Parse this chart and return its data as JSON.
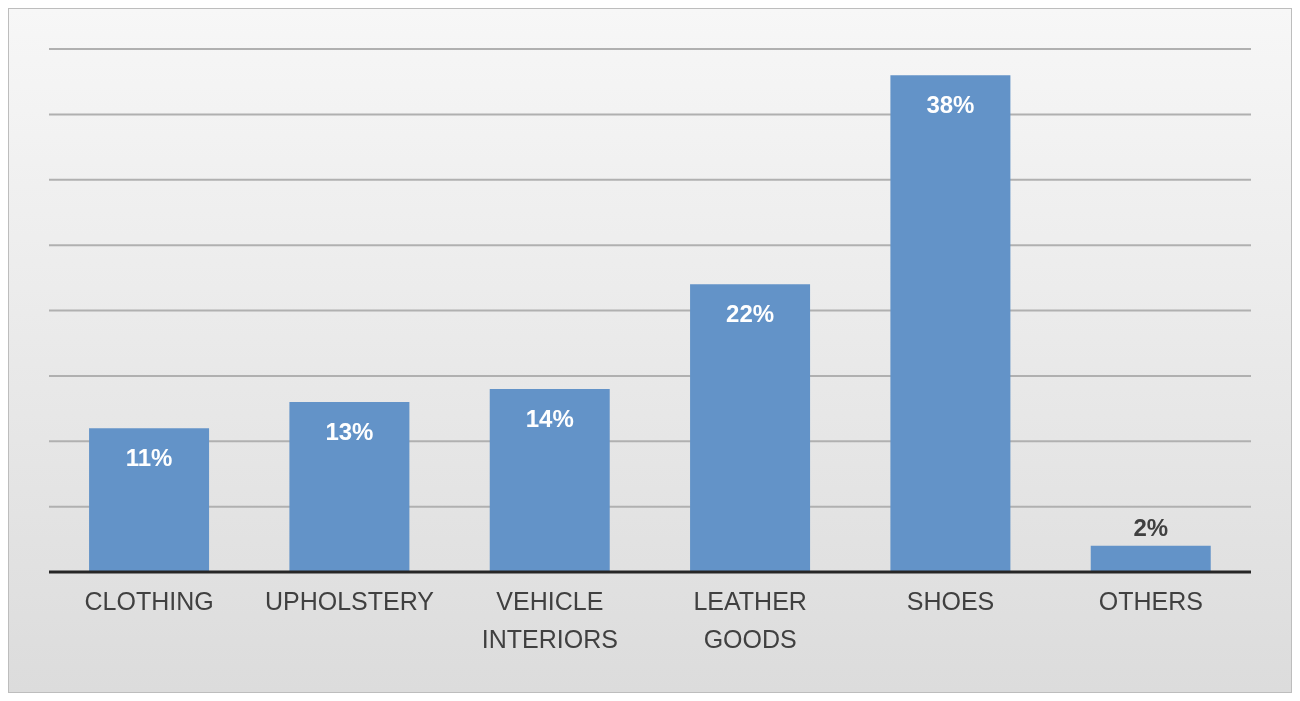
{
  "chart_data": {
    "type": "bar",
    "categories": [
      "CLOTHING",
      "UPHOLSTERY",
      "VEHICLE INTERIORS",
      "LEATHER GOODS",
      "SHOES",
      "OTHERS"
    ],
    "values": [
      11,
      13,
      14,
      22,
      38,
      2
    ],
    "value_labels": [
      "11%",
      "13%",
      "14%",
      "22%",
      "38%",
      "2%"
    ],
    "color": "#6393c8",
    "ylim": [
      0,
      40
    ],
    "yticks": [
      {
        "value": 0,
        "label": null
      },
      {
        "value": 5,
        "label": null
      },
      {
        "value": 10,
        "label": null
      },
      {
        "value": 15,
        "label": null
      },
      {
        "value": 20,
        "label": null
      },
      {
        "value": 25,
        "label": null
      },
      {
        "value": 30,
        "label": null
      },
      {
        "value": 35,
        "label": null
      },
      {
        "value": 40,
        "label": null
      }
    ],
    "grid": "y",
    "tick_labels": "x",
    "legend": false
  }
}
